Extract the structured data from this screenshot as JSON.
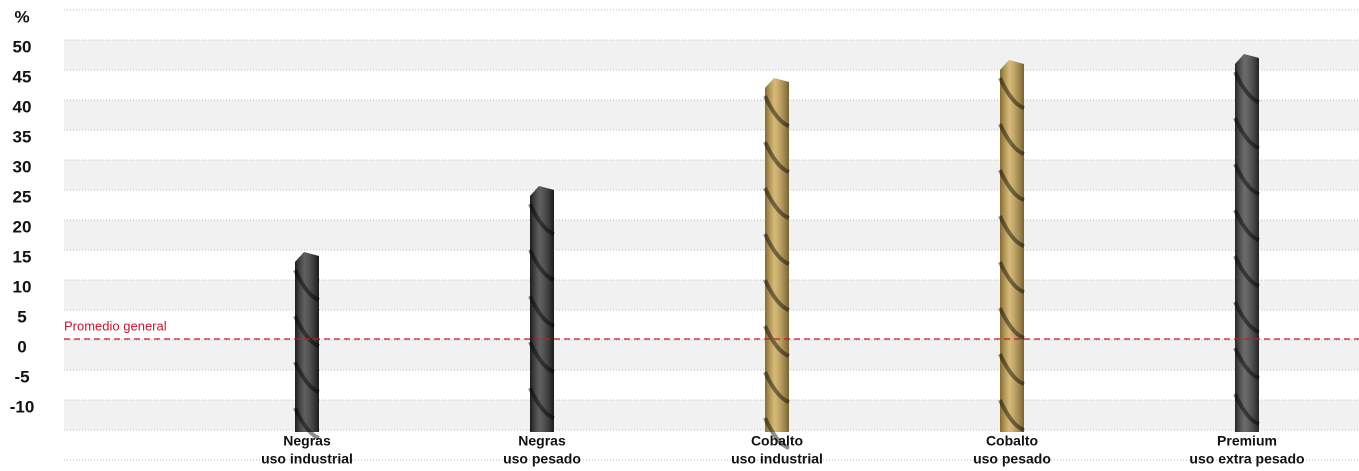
{
  "chart_data": {
    "type": "bar",
    "y_unit": "%",
    "categories": [
      [
        "Negras",
        "uso industrial"
      ],
      [
        "Negras",
        "uso pesado"
      ],
      [
        "Cobalto",
        "uso industrial"
      ],
      [
        "Cobalto",
        "uso pesado"
      ],
      [
        "Premium",
        "uso extra pesado"
      ]
    ],
    "values": [
      16,
      27,
      45,
      48,
      49
    ],
    "colors": [
      "#2a2a2a",
      "#2a2a2a",
      "#c9a24a",
      "#c9a24a",
      "#3a3a3a"
    ],
    "ylim": [
      -14,
      58
    ],
    "yticks": [
      -10,
      -5,
      0,
      5,
      10,
      15,
      20,
      25,
      30,
      35,
      40,
      45,
      50
    ],
    "reference_line": {
      "label": "Promedio general",
      "value": 1.5,
      "color": "#d0112b"
    }
  }
}
